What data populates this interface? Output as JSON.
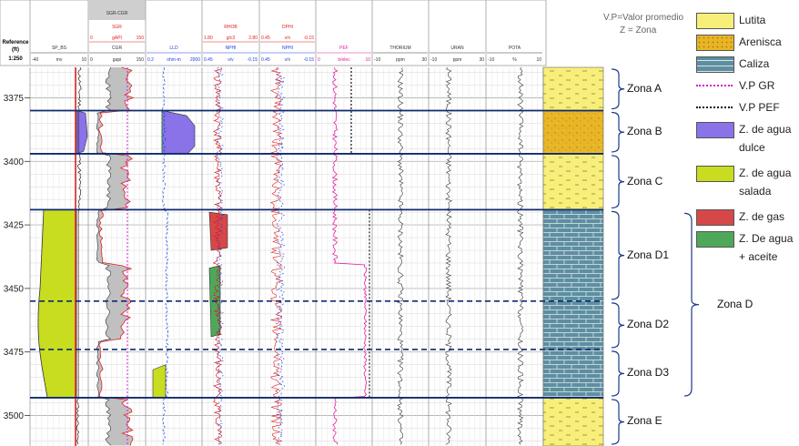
{
  "header": {
    "reference_label": "Reference",
    "reference_unit": "(ft)",
    "scale": "1:250"
  },
  "tracks": [
    {
      "top": "",
      "name": "SP_BS",
      "unit": "mv",
      "min": "-40",
      "max": "10"
    },
    {
      "top": "SGR",
      "subtitle": "SGR-CGR",
      "range_top": [
        "0",
        "gAPI",
        "150"
      ],
      "name": "CGR",
      "unit": "gapi",
      "min": "0",
      "max": "150"
    },
    {
      "top": "",
      "name": "LLD",
      "unit": "ohm-m",
      "min": "0.2",
      "max": "2000"
    },
    {
      "top": "RHOB",
      "range_top": [
        "1.80",
        "g/c3",
        "2.80"
      ],
      "name": "NPHI",
      "unit": "v/v",
      "min": "0.45",
      "max": "-0.15"
    },
    {
      "top": "DPHI",
      "range_top": [
        "0.45",
        "v/v",
        "-0.15"
      ],
      "name": "NPHI",
      "unit": "v/v",
      "min": "0.45",
      "max": "-0.15"
    },
    {
      "top": "",
      "name": "PEF",
      "unit": "b/elec",
      "min": "0",
      "max": "10"
    },
    {
      "top": "",
      "name": "THORIUM",
      "unit": "ppm",
      "min": "-10",
      "max": "30"
    },
    {
      "top": "",
      "name": "URAN",
      "unit": "ppm",
      "min": "-10",
      "max": "30"
    },
    {
      "top": "",
      "name": "POTA",
      "unit": "%",
      "min": "-10",
      "max": "10"
    }
  ],
  "depth_ticks": [
    "3375",
    "3400",
    "3425",
    "3450",
    "3475",
    "3500"
  ],
  "notes": {
    "line1": "V.P=Valor promedio",
    "line2": "Z = Zona"
  },
  "legend": [
    {
      "label": "Lutita",
      "kind": "lutita",
      "color": "#f8ef7a"
    },
    {
      "label": "Arenisca",
      "kind": "arenisca",
      "color": "#e8b526"
    },
    {
      "label": "Caliza",
      "kind": "caliza",
      "color": "#5d8fa0"
    },
    {
      "label": "V.P GR",
      "kind": "line",
      "color": "#d020d0"
    },
    {
      "label": "V.P PEF",
      "kind": "line",
      "color": "#111111"
    },
    {
      "label": "Z. de agua dulce",
      "line1": "Z. de agua",
      "line2": "dulce",
      "kind": "fill",
      "color": "#8a72e8"
    },
    {
      "label": "Z. de agua salada",
      "line1": "Z. de agua",
      "line2": "salada",
      "kind": "fill",
      "color": "#c8dc20"
    },
    {
      "label": "Z. de gas",
      "kind": "fill",
      "color": "#d64848"
    },
    {
      "label": "Z. De agua + aceite",
      "line1": "Z. De agua",
      "line2": "+ aceite",
      "kind": "fill",
      "color": "#4fa85a"
    }
  ],
  "zones": [
    {
      "label": "Zona A",
      "top": 3363,
      "bottom": 3380
    },
    {
      "label": "Zona B",
      "top": 3380,
      "bottom": 3397
    },
    {
      "label": "Zona C",
      "top": 3397,
      "bottom": 3419
    },
    {
      "label": "Zona D1",
      "top": 3419,
      "bottom": 3455
    },
    {
      "label": "Zona D2",
      "top": 3455,
      "bottom": 3474
    },
    {
      "label": "Zona D3",
      "top": 3474,
      "bottom": 3493
    },
    {
      "label": "Zona E",
      "top": 3493,
      "bottom": 3512
    }
  ],
  "group_zone": {
    "label": "Zona D",
    "top": 3419,
    "bottom": 3493
  },
  "lithology": [
    {
      "top": 3363,
      "bottom": 3380,
      "kind": "lutita"
    },
    {
      "top": 3380,
      "bottom": 3397,
      "kind": "arenisca"
    },
    {
      "top": 3397,
      "bottom": 3419,
      "kind": "lutita"
    },
    {
      "top": 3419,
      "bottom": 3493,
      "kind": "caliza"
    },
    {
      "top": 3493,
      "bottom": 3512,
      "kind": "lutita"
    }
  ],
  "colors": {
    "gr_fill": "#c0c0c0",
    "lld": "#2040e0",
    "red_curve": "#e02020",
    "zone_line": "#0e2a6e",
    "grid": "#d6d6d6"
  }
}
